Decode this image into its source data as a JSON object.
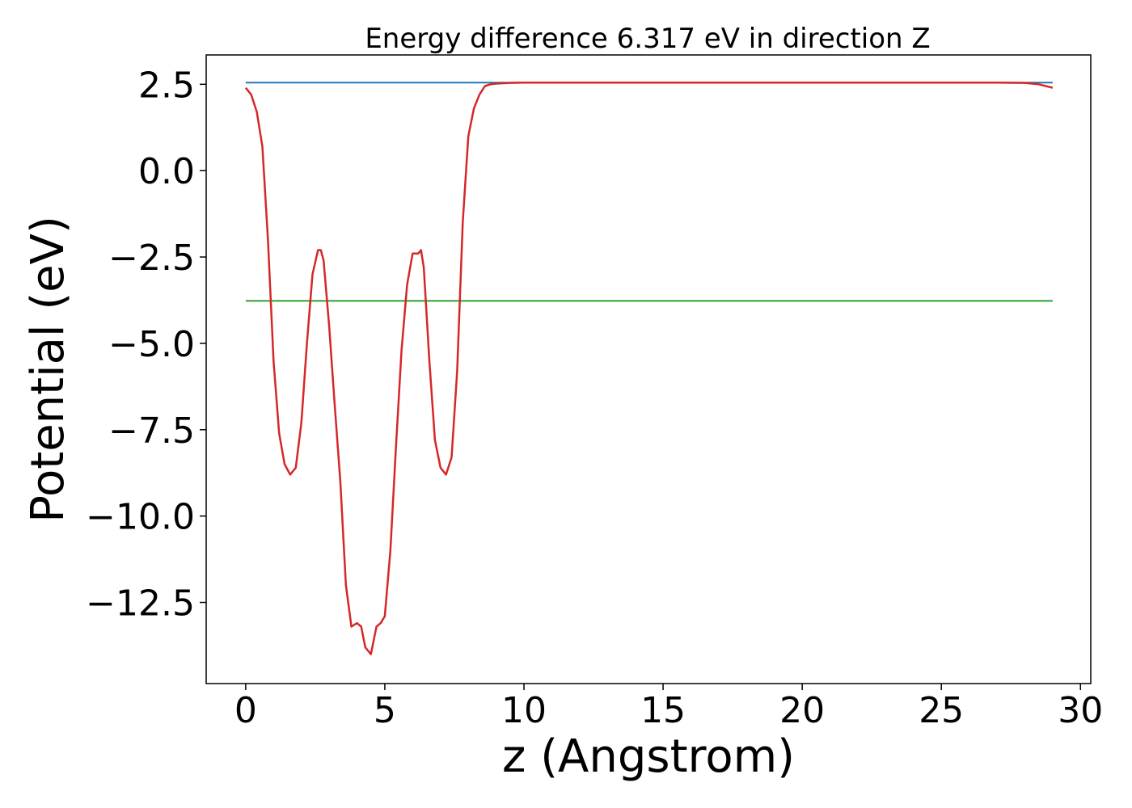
{
  "chart_data": {
    "type": "line",
    "title": "Energy difference 6.317 eV in direction Z",
    "xlabel": "z (Angstrom)",
    "ylabel": "Potential (eV)",
    "xlim": [
      -1.42,
      30.37
    ],
    "ylim": [
      -14.85,
      3.35
    ],
    "x_ticks": [
      0,
      5,
      10,
      15,
      20,
      25,
      30
    ],
    "x_tick_labels": [
      "0",
      "5",
      "10",
      "15",
      "20",
      "25",
      "30"
    ],
    "y_ticks": [
      2.5,
      0.0,
      -2.5,
      -5.0,
      -7.5,
      -10.0,
      -12.5
    ],
    "y_tick_labels": [
      "2.5",
      "0.0",
      "−2.5",
      "−5.0",
      "−7.5",
      "−10.0",
      "−12.5"
    ],
    "grid": false,
    "legend": "none",
    "series": [
      {
        "color": "#1f77b4",
        "x": [
          0,
          29
        ],
        "y": [
          2.55,
          2.55
        ]
      },
      {
        "color": "#2ca02c",
        "x": [
          0,
          29
        ],
        "y": [
          -3.77,
          -3.77
        ]
      },
      {
        "color": "#d62728",
        "x": [
          0,
          0.2,
          0.4,
          0.6,
          0.8,
          1.0,
          1.2,
          1.4,
          1.6,
          1.8,
          2.0,
          2.2,
          2.4,
          2.6,
          2.7,
          2.8,
          3.0,
          3.2,
          3.4,
          3.6,
          3.8,
          4.0,
          4.15,
          4.3,
          4.5,
          4.7,
          4.85,
          5.0,
          5.2,
          5.4,
          5.6,
          5.8,
          6.0,
          6.2,
          6.3,
          6.4,
          6.6,
          6.8,
          7.0,
          7.2,
          7.4,
          7.6,
          7.8,
          8.0,
          8.2,
          8.4,
          8.6,
          8.8,
          9.0,
          9.2,
          9.5,
          10.0,
          11.0,
          12.0,
          15.0,
          20.0,
          25.0,
          27.0,
          28.0,
          28.5,
          29.0
        ],
        "y": [
          2.4,
          2.2,
          1.7,
          0.7,
          -2.0,
          -5.5,
          -7.6,
          -8.5,
          -8.8,
          -8.6,
          -7.3,
          -5.0,
          -3.0,
          -2.3,
          -2.3,
          -2.6,
          -4.5,
          -6.8,
          -9.0,
          -12.0,
          -13.2,
          -13.1,
          -13.2,
          -13.8,
          -14.0,
          -13.2,
          -13.1,
          -12.9,
          -11.0,
          -8.0,
          -5.2,
          -3.3,
          -2.4,
          -2.4,
          -2.3,
          -2.8,
          -5.5,
          -7.8,
          -8.6,
          -8.8,
          -8.3,
          -5.8,
          -1.5,
          1.0,
          1.8,
          2.2,
          2.45,
          2.5,
          2.52,
          2.53,
          2.54,
          2.55,
          2.55,
          2.55,
          2.55,
          2.55,
          2.55,
          2.55,
          2.54,
          2.5,
          2.4
        ]
      }
    ]
  }
}
